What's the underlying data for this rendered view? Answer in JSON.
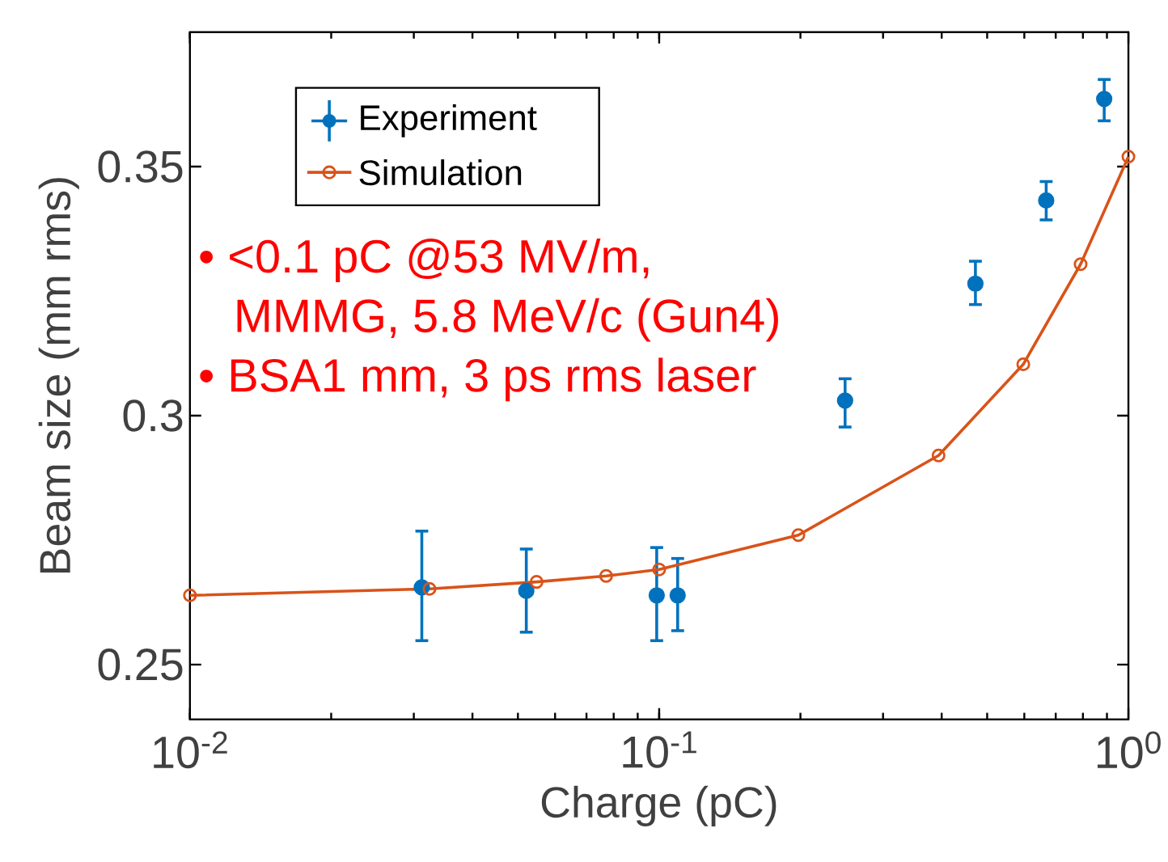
{
  "chart_data": {
    "type": "scatter",
    "xlabel": "Charge (pC)",
    "ylabel": "Beam size (mm rms)",
    "log": "x",
    "xlim": [
      0.01,
      1
    ],
    "ylim": [
      0.239,
      0.377
    ],
    "xticks": [
      {
        "value": 0.01,
        "label": "10$^{-2}$"
      },
      {
        "value": 0.1,
        "label": "10$^{-1}$"
      },
      {
        "value": 1,
        "label": "10$^{0}$"
      }
    ],
    "yticks": [
      0.25,
      0.3,
      0.35
    ],
    "grid": false,
    "legend": "top left",
    "annotations": [
      "• <0.1 pC @53 MV/m, MMMG, 5.8 MeV/c (Gun4)",
      "• BSA1 mm, 3 ps rms laser"
    ],
    "series": [
      {
        "name": "Experiment",
        "marker": "circle",
        "color": "#0072bd",
        "x": [
          0.0312,
          0.0521,
          0.0988,
          0.1095,
          0.249,
          0.472,
          0.668,
          0.888
        ],
        "values": [
          0.2655,
          0.2648,
          0.2639,
          0.2639,
          0.303,
          0.3265,
          0.3432,
          0.3636
        ],
        "errors": [
          [
            0.2548,
            0.2768
          ],
          [
            0.2565,
            0.2732
          ],
          [
            0.2548,
            0.2735
          ],
          [
            0.2568,
            0.2713
          ],
          [
            0.2977,
            0.3074
          ],
          [
            0.3223,
            0.331
          ],
          [
            0.3393,
            0.347
          ],
          [
            0.3592,
            0.3675
          ]
        ]
      },
      {
        "name": "Simulation",
        "type": "line",
        "marker": "circle",
        "line_style": "solid",
        "color": "#d95319",
        "x": [
          0.01,
          0.0324,
          0.0548,
          0.0771,
          0.1,
          0.198,
          0.394,
          0.597,
          0.791,
          1.0
        ],
        "values": [
          0.2639,
          0.2652,
          0.2666,
          0.2678,
          0.2691,
          0.276,
          0.292,
          0.3103,
          0.3304,
          0.352
        ]
      }
    ]
  }
}
